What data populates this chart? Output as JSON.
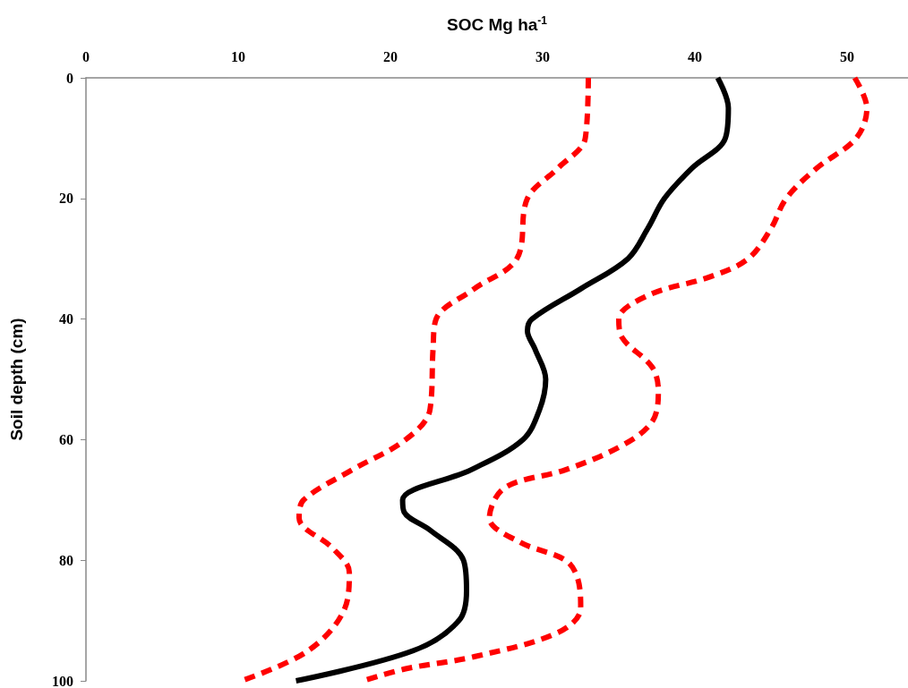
{
  "chart_data": {
    "type": "line",
    "xlabel": "SOC Mg ha$^{-1}$",
    "ylabel": "Soil depth (cm)",
    "xlim": [
      0,
      54
    ],
    "xticks": [
      0,
      10,
      20,
      30,
      40,
      50
    ],
    "ylim": [
      100,
      0
    ],
    "yticks": [
      0,
      20,
      40,
      60,
      80,
      100
    ],
    "grid": false,
    "marker": "none",
    "series": [
      {
        "color": "#ff0000",
        "line_style": "dashed",
        "x": [
          33.0,
          32.8,
          31.0,
          29.0,
          28.3,
          25.5,
          23.0,
          22.8,
          22.6,
          21.0,
          17.5,
          14.3,
          14.0,
          16.2,
          17.3,
          17.0,
          14.6,
          10.2
        ],
        "values": [
          0,
          10,
          15,
          20,
          30,
          35,
          40,
          45,
          55,
          60,
          65,
          70,
          73,
          78,
          82,
          88,
          95,
          100
        ]
      },
      {
        "color": "#000000",
        "line_style": "solid",
        "x": [
          41.5,
          42.2,
          42.0,
          39.8,
          38.0,
          36.9,
          35.6,
          32.5,
          29.3,
          29.0,
          29.5,
          30.2,
          29.8,
          28.7,
          25.3,
          20.8,
          20.9,
          22.6,
          24.8,
          25.0,
          24.5,
          21.5,
          13.8
        ],
        "values": [
          0,
          5,
          10,
          15,
          20,
          25,
          30,
          35,
          40,
          42,
          45,
          50,
          55,
          60,
          65,
          70,
          72,
          75,
          80,
          85,
          90,
          95,
          100
        ]
      },
      {
        "color": "#ff0000",
        "line_style": "dashed",
        "x": [
          50.5,
          51.3,
          50.6,
          48.0,
          46.0,
          45.0,
          43.5,
          41.0,
          37.0,
          35.0,
          35.2,
          37.2,
          37.6,
          37.2,
          35.2,
          31.5,
          27.5,
          26.5,
          28.5,
          31.5,
          32.3,
          32.5,
          31.0,
          25.5,
          21.0,
          18.2
        ],
        "values": [
          0,
          5,
          10,
          15,
          20,
          25,
          30,
          33,
          36,
          40,
          43,
          48,
          52,
          57,
          61,
          65,
          68,
          73,
          77,
          80,
          83,
          88,
          92,
          96,
          98,
          100
        ]
      }
    ]
  }
}
